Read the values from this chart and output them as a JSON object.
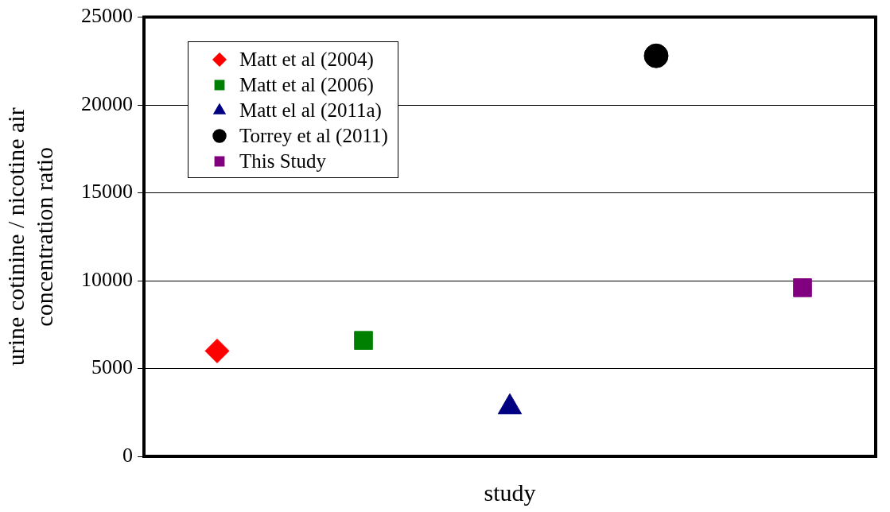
{
  "chart_data": {
    "type": "scatter",
    "xlabel": "study",
    "ylabel": "urine cotinine / nicotine air concentration ratio",
    "categories": [
      null,
      null,
      null,
      null,
      null
    ],
    "ylim": [
      0,
      25000
    ],
    "yticks": [
      0,
      5000,
      10000,
      15000,
      20000,
      25000
    ],
    "tick_labels": "y",
    "grid": "y",
    "legend": "top left",
    "series": [
      {
        "name": "Matt et al (2004)",
        "color": "#ff0000",
        "marker": "diamond",
        "values": [
          6000,
          null,
          null,
          null,
          null
        ]
      },
      {
        "name": "Matt et al (2006)",
        "color": "#008000",
        "marker": "square",
        "values": [
          null,
          6600,
          null,
          null,
          null
        ]
      },
      {
        "name": "Matt el al (2011a)",
        "color": "#000080",
        "marker": "triangle",
        "values": [
          null,
          null,
          2800,
          null,
          null
        ]
      },
      {
        "name": "Torrey et al (2011)",
        "color": "#000000",
        "marker": "circle",
        "values": [
          null,
          null,
          null,
          22800,
          null
        ]
      },
      {
        "name": "This Study",
        "color": "#800080",
        "marker": "square",
        "values": [
          null,
          null,
          null,
          null,
          9600
        ]
      }
    ]
  }
}
